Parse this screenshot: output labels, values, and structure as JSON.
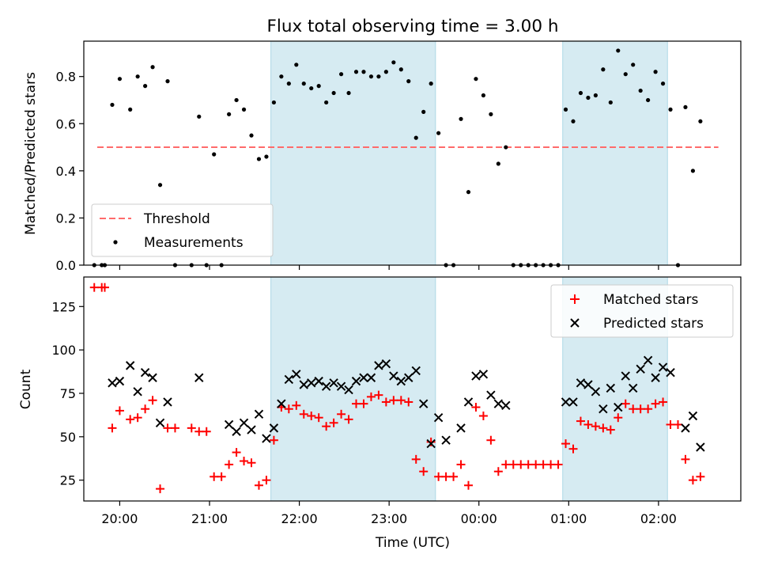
{
  "colors": {
    "shade": "#add8e6",
    "threshold": "#ff6b6b",
    "matched": "#ff0000",
    "predicted": "#000000",
    "measurement": "#000000"
  },
  "chart_data": [
    {
      "type": "scatter",
      "title": "Flux total observing time = 3.00 h",
      "xlabel": "",
      "ylabel": "Matched/Predicted stars",
      "ylim": [
        0,
        0.95
      ],
      "xlim": [
        "19:36",
        "02:55"
      ],
      "yticks": [
        "0.0",
        "0.2",
        "0.4",
        "0.6",
        "0.8"
      ],
      "shaded_intervals": [
        [
          "21:41",
          "23:31"
        ],
        [
          "00:56",
          "02:06"
        ]
      ],
      "legend": {
        "position": "bottom-left",
        "entries": [
          "Threshold",
          "Measurements"
        ]
      },
      "threshold": {
        "name": "Threshold",
        "value": 0.5,
        "x_start": "19:45",
        "x_end": "02:40",
        "style": "dashed"
      },
      "series": [
        {
          "name": "Measurements",
          "marker": "dot",
          "points": [
            [
              "19:43",
              0.0
            ],
            [
              "19:48",
              0.0
            ],
            [
              "19:50",
              0.0
            ],
            [
              "19:55",
              0.68
            ],
            [
              "20:00",
              0.79
            ],
            [
              "20:07",
              0.66
            ],
            [
              "20:12",
              0.8
            ],
            [
              "20:17",
              0.76
            ],
            [
              "20:22",
              0.84
            ],
            [
              "20:27",
              0.34
            ],
            [
              "20:32",
              0.78
            ],
            [
              "20:37",
              0.0
            ],
            [
              "20:48",
              0.0
            ],
            [
              "20:53",
              0.63
            ],
            [
              "20:58",
              0.0
            ],
            [
              "21:03",
              0.47
            ],
            [
              "21:08",
              0.0
            ],
            [
              "21:13",
              0.64
            ],
            [
              "21:18",
              0.7
            ],
            [
              "21:23",
              0.66
            ],
            [
              "21:28",
              0.55
            ],
            [
              "21:33",
              0.45
            ],
            [
              "21:38",
              0.46
            ],
            [
              "21:43",
              0.69
            ],
            [
              "21:48",
              0.8
            ],
            [
              "21:53",
              0.77
            ],
            [
              "21:58",
              0.85
            ],
            [
              "22:03",
              0.77
            ],
            [
              "22:08",
              0.75
            ],
            [
              "22:13",
              0.76
            ],
            [
              "22:18",
              0.69
            ],
            [
              "22:23",
              0.73
            ],
            [
              "22:28",
              0.81
            ],
            [
              "22:33",
              0.73
            ],
            [
              "22:38",
              0.82
            ],
            [
              "22:43",
              0.82
            ],
            [
              "22:48",
              0.8
            ],
            [
              "22:53",
              0.8
            ],
            [
              "22:58",
              0.82
            ],
            [
              "23:03",
              0.86
            ],
            [
              "23:08",
              0.83
            ],
            [
              "23:13",
              0.78
            ],
            [
              "23:18",
              0.54
            ],
            [
              "23:23",
              0.65
            ],
            [
              "23:28",
              0.77
            ],
            [
              "23:33",
              0.56
            ],
            [
              "23:38",
              0.0
            ],
            [
              "23:43",
              0.0
            ],
            [
              "23:48",
              0.62
            ],
            [
              "23:53",
              0.31
            ],
            [
              "23:58",
              0.79
            ],
            [
              "00:03",
              0.72
            ],
            [
              "00:08",
              0.64
            ],
            [
              "00:13",
              0.43
            ],
            [
              "00:18",
              0.5
            ],
            [
              "00:23",
              0.0
            ],
            [
              "00:28",
              0.0
            ],
            [
              "00:33",
              0.0
            ],
            [
              "00:38",
              0.0
            ],
            [
              "00:43",
              0.0
            ],
            [
              "00:48",
              0.0
            ],
            [
              "00:53",
              0.0
            ],
            [
              "00:58",
              0.66
            ],
            [
              "01:03",
              0.61
            ],
            [
              "01:08",
              0.73
            ],
            [
              "01:13",
              0.71
            ],
            [
              "01:18",
              0.72
            ],
            [
              "01:23",
              0.83
            ],
            [
              "01:28",
              0.69
            ],
            [
              "01:33",
              0.91
            ],
            [
              "01:38",
              0.81
            ],
            [
              "01:43",
              0.85
            ],
            [
              "01:48",
              0.74
            ],
            [
              "01:53",
              0.7
            ],
            [
              "01:58",
              0.82
            ],
            [
              "02:03",
              0.77
            ],
            [
              "02:08",
              0.66
            ],
            [
              "02:13",
              0.0
            ],
            [
              "02:18",
              0.67
            ],
            [
              "02:23",
              0.4
            ],
            [
              "02:28",
              0.61
            ]
          ]
        }
      ]
    },
    {
      "type": "scatter",
      "title": "",
      "xlabel": "Time (UTC)",
      "ylabel": "Count",
      "ylim": [
        13,
        142
      ],
      "xlim": [
        "19:36",
        "02:55"
      ],
      "yticks": [
        "25",
        "50",
        "75",
        "100",
        "125"
      ],
      "xticks": [
        "20:00",
        "21:00",
        "22:00",
        "23:00",
        "00:00",
        "01:00",
        "02:00"
      ],
      "shaded_intervals": [
        [
          "21:41",
          "23:31"
        ],
        [
          "00:56",
          "02:06"
        ]
      ],
      "legend": {
        "position": "top-right",
        "entries": [
          "Matched stars",
          "Predicted stars"
        ]
      },
      "series": [
        {
          "name": "Matched stars",
          "marker": "plus",
          "points": [
            [
              "19:43",
              136
            ],
            [
              "19:48",
              136
            ],
            [
              "19:50",
              136
            ],
            [
              "19:55",
              55
            ],
            [
              "20:00",
              65
            ],
            [
              "20:07",
              60
            ],
            [
              "20:12",
              61
            ],
            [
              "20:17",
              66
            ],
            [
              "20:22",
              71
            ],
            [
              "20:27",
              20
            ],
            [
              "20:32",
              55
            ],
            [
              "20:37",
              55
            ],
            [
              "20:48",
              55
            ],
            [
              "20:53",
              53
            ],
            [
              "20:58",
              53
            ],
            [
              "21:03",
              27
            ],
            [
              "21:08",
              27
            ],
            [
              "21:13",
              34
            ],
            [
              "21:18",
              41
            ],
            [
              "21:23",
              36
            ],
            [
              "21:28",
              35
            ],
            [
              "21:33",
              22
            ],
            [
              "21:38",
              25
            ],
            [
              "21:43",
              48
            ],
            [
              "21:48",
              67
            ],
            [
              "21:53",
              66
            ],
            [
              "21:58",
              68
            ],
            [
              "22:03",
              63
            ],
            [
              "22:08",
              62
            ],
            [
              "22:13",
              61
            ],
            [
              "22:18",
              56
            ],
            [
              "22:23",
              58
            ],
            [
              "22:28",
              63
            ],
            [
              "22:33",
              60
            ],
            [
              "22:38",
              69
            ],
            [
              "22:43",
              69
            ],
            [
              "22:48",
              73
            ],
            [
              "22:53",
              74
            ],
            [
              "22:58",
              70
            ],
            [
              "23:03",
              71
            ],
            [
              "23:08",
              71
            ],
            [
              "23:13",
              70
            ],
            [
              "23:18",
              37
            ],
            [
              "23:23",
              30
            ],
            [
              "23:28",
              47
            ],
            [
              "23:33",
              27
            ],
            [
              "23:38",
              27
            ],
            [
              "23:43",
              27
            ],
            [
              "23:48",
              34
            ],
            [
              "23:53",
              22
            ],
            [
              "23:58",
              67
            ],
            [
              "00:03",
              62
            ],
            [
              "00:08",
              48
            ],
            [
              "00:13",
              30
            ],
            [
              "00:18",
              34
            ],
            [
              "00:23",
              34
            ],
            [
              "00:28",
              34
            ],
            [
              "00:33",
              34
            ],
            [
              "00:38",
              34
            ],
            [
              "00:43",
              34
            ],
            [
              "00:48",
              34
            ],
            [
              "00:53",
              34
            ],
            [
              "00:58",
              46
            ],
            [
              "01:03",
              43
            ],
            [
              "01:08",
              59
            ],
            [
              "01:13",
              57
            ],
            [
              "01:18",
              56
            ],
            [
              "01:23",
              55
            ],
            [
              "01:28",
              54
            ],
            [
              "01:33",
              61
            ],
            [
              "01:38",
              69
            ],
            [
              "01:43",
              66
            ],
            [
              "01:48",
              66
            ],
            [
              "01:53",
              66
            ],
            [
              "01:58",
              69
            ],
            [
              "02:03",
              70
            ],
            [
              "02:08",
              57
            ],
            [
              "02:13",
              57
            ],
            [
              "02:18",
              37
            ],
            [
              "02:23",
              25
            ],
            [
              "02:28",
              27
            ]
          ]
        },
        {
          "name": "Predicted stars",
          "marker": "x",
          "points": [
            [
              "19:55",
              81
            ],
            [
              "20:00",
              82
            ],
            [
              "20:07",
              91
            ],
            [
              "20:12",
              76
            ],
            [
              "20:17",
              87
            ],
            [
              "20:22",
              84
            ],
            [
              "20:27",
              58
            ],
            [
              "20:32",
              70
            ],
            [
              "20:53",
              84
            ],
            [
              "21:13",
              57
            ],
            [
              "21:18",
              53
            ],
            [
              "21:23",
              58
            ],
            [
              "21:28",
              54
            ],
            [
              "21:33",
              63
            ],
            [
              "21:38",
              49
            ],
            [
              "21:43",
              55
            ],
            [
              "21:48",
              69
            ],
            [
              "21:53",
              83
            ],
            [
              "21:58",
              86
            ],
            [
              "22:03",
              80
            ],
            [
              "22:08",
              81
            ],
            [
              "22:13",
              82
            ],
            [
              "22:18",
              79
            ],
            [
              "22:23",
              81
            ],
            [
              "22:28",
              79
            ],
            [
              "22:33",
              77
            ],
            [
              "22:38",
              82
            ],
            [
              "22:43",
              84
            ],
            [
              "22:48",
              84
            ],
            [
              "22:53",
              91
            ],
            [
              "22:58",
              92
            ],
            [
              "23:03",
              85
            ],
            [
              "23:08",
              82
            ],
            [
              "23:13",
              84
            ],
            [
              "23:18",
              88
            ],
            [
              "23:23",
              69
            ],
            [
              "23:28",
              46
            ],
            [
              "23:33",
              61
            ],
            [
              "23:38",
              48
            ],
            [
              "23:48",
              55
            ],
            [
              "23:53",
              70
            ],
            [
              "23:58",
              85
            ],
            [
              "00:03",
              86
            ],
            [
              "00:08",
              74
            ],
            [
              "00:13",
              69
            ],
            [
              "00:18",
              68
            ],
            [
              "00:58",
              70
            ],
            [
              "01:03",
              70
            ],
            [
              "01:08",
              81
            ],
            [
              "01:13",
              80
            ],
            [
              "01:18",
              76
            ],
            [
              "01:23",
              66
            ],
            [
              "01:28",
              78
            ],
            [
              "01:33",
              67
            ],
            [
              "01:38",
              85
            ],
            [
              "01:43",
              78
            ],
            [
              "01:48",
              89
            ],
            [
              "01:53",
              94
            ],
            [
              "01:58",
              84
            ],
            [
              "02:03",
              90
            ],
            [
              "02:08",
              87
            ],
            [
              "02:18",
              55
            ],
            [
              "02:23",
              62
            ],
            [
              "02:28",
              44
            ]
          ]
        }
      ]
    }
  ]
}
